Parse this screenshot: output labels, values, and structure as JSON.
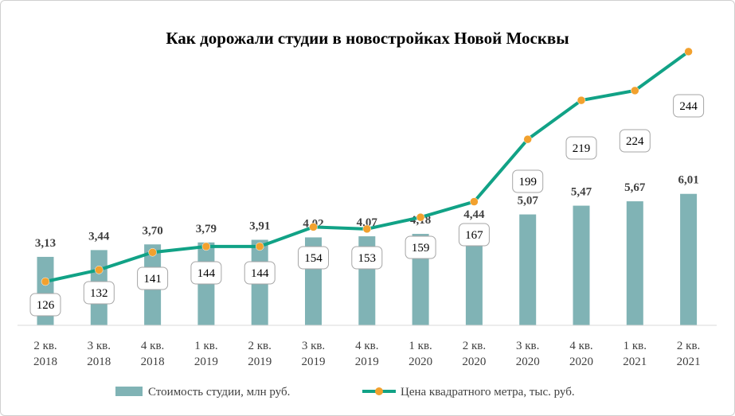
{
  "chart_data": {
    "type": "bar",
    "title": "Как дорожали студии в новостройках Новой Москвы",
    "categories": [
      [
        "2 кв.",
        "2018"
      ],
      [
        "3 кв.",
        "2018"
      ],
      [
        "4 кв.",
        "2018"
      ],
      [
        "1 кв.",
        "2019"
      ],
      [
        "2 кв.",
        "2019"
      ],
      [
        "3 кв.",
        "2019"
      ],
      [
        "4 кв.",
        "2019"
      ],
      [
        "1 кв.",
        "2020"
      ],
      [
        "2 кв.",
        "2020"
      ],
      [
        "3 кв.",
        "2020"
      ],
      [
        "4 кв.",
        "2020"
      ],
      [
        "1 кв.",
        "2021"
      ],
      [
        "2 кв.",
        "2021"
      ]
    ],
    "series": [
      {
        "name": "Стоимость студии, млн руб.",
        "type": "bar",
        "color": "#80b3b5",
        "values": [
          3.13,
          3.44,
          3.7,
          3.79,
          3.91,
          4.02,
          4.07,
          4.18,
          4.44,
          5.07,
          5.47,
          5.67,
          6.01
        ],
        "labels": [
          "3,13",
          "3,44",
          "3,70",
          "3,79",
          "3,91",
          "4,02",
          "4,07",
          "4,18",
          "4,44",
          "5,07",
          "5,47",
          "5,67",
          "6,01"
        ]
      },
      {
        "name": "Цена квадратного метра, тыс. руб.",
        "type": "line",
        "color": "#11a286",
        "marker_color": "#f2a12e",
        "values": [
          126,
          132,
          141,
          144,
          144,
          154,
          153,
          159,
          167,
          199,
          219,
          224,
          244
        ],
        "labels": [
          "126",
          "132",
          "141",
          "144",
          "144",
          "154",
          "153",
          "159",
          "167",
          "199",
          "219",
          "224",
          "244"
        ]
      }
    ],
    "legend_position": "bottom",
    "grid": false
  }
}
